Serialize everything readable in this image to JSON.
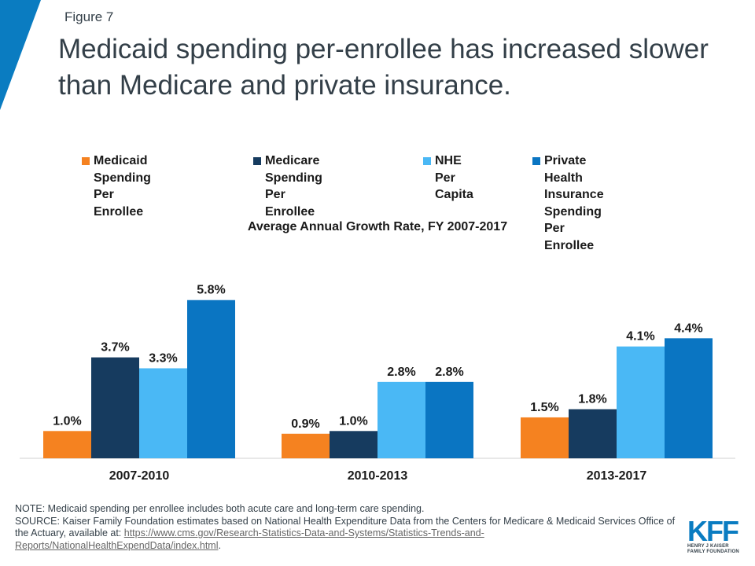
{
  "header": {
    "figure_label": "Figure 7",
    "title": "Medicaid spending per-enrollee has increased slower than Medicare and private insurance."
  },
  "colors": {
    "corner_triangle": "#0a7cc1",
    "text": "#333f48",
    "axis": "#d0d0d0"
  },
  "chart_data": {
    "type": "bar",
    "title": "Average Annual Growth Rate, FY 2007-2017",
    "xlabel": "",
    "ylabel": "",
    "ylim": [
      0,
      7
    ],
    "grid": false,
    "legend_position": "top",
    "categories": [
      "2007-2010",
      "2010-2013",
      "2013-2017"
    ],
    "series": [
      {
        "name": "Medicaid Spending\nPer Enrollee",
        "color": "#f58220",
        "values": [
          1.0,
          0.9,
          1.5
        ],
        "labels": [
          "1.0%",
          "0.9%",
          "1.5%"
        ]
      },
      {
        "name": "Medicare Spending\nPer Enrollee",
        "color": "#163b5f",
        "values": [
          3.7,
          1.0,
          1.8
        ],
        "labels": [
          "3.7%",
          "1.0%",
          "1.8%"
        ]
      },
      {
        "name": "NHE\nPer Capita",
        "color": "#4ab8f5",
        "values": [
          3.3,
          2.8,
          4.1
        ],
        "labels": [
          "3.3%",
          "2.8%",
          "4.1%"
        ]
      },
      {
        "name": "Private Health\nInsurance Spending\nPer Enrollee",
        "color": "#0a75c2",
        "values": [
          5.8,
          2.8,
          4.4
        ],
        "labels": [
          "5.8%",
          "2.8%",
          "4.4%"
        ]
      }
    ]
  },
  "notes": {
    "note": "NOTE: Medicaid spending per enrollee includes both acute care and long-term care spending.",
    "source": "SOURCE:  Kaiser Family Foundation estimates based on National Health Expenditure Data from the Centers for Medicare & Medicaid Services Office of the Actuary, available at: ",
    "link_text": "https://www.cms.gov/Research-Statistics-Data-and-Systems/Statistics-Trends-and-Reports/NationalHealthExpendData/index.html",
    "end": "."
  },
  "logo": {
    "mark": "KFF",
    "line1": "Henry J Kaiser",
    "line2": "Family Foundation"
  }
}
